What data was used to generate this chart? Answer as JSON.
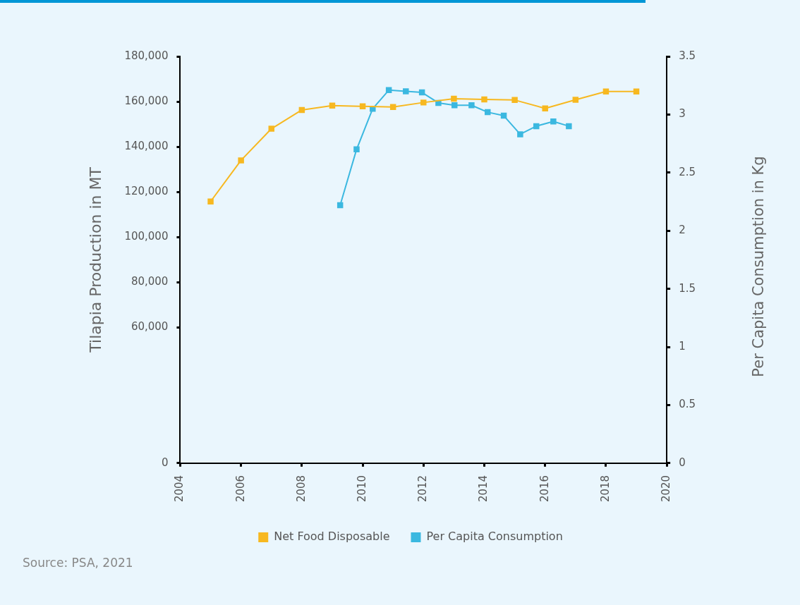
{
  "chart_data": {
    "type": "line",
    "xlabel": null,
    "ylabel": "Tilapia Production in MT",
    "y2label": "Per Capita Consumption in Kg",
    "annotations": [
      "Source: PSA, 2021"
    ],
    "xlim": [
      2004,
      2020
    ],
    "xticks": [
      2004,
      2006,
      2008,
      2010,
      2012,
      2014,
      2016,
      2018,
      2020
    ],
    "ylim": [
      0,
      180000
    ],
    "yticks": [
      0,
      {
        "value": 60000,
        "label": "60,000"
      },
      {
        "value": 80000,
        "label": "80,000"
      },
      {
        "value": 100000,
        "label": "100,000"
      },
      {
        "value": 120000,
        "label": "120,000"
      },
      {
        "value": 140000,
        "label": "140,000"
      },
      {
        "value": 160000,
        "label": "160,000"
      },
      {
        "value": 180000,
        "label": "180,000"
      }
    ],
    "y2lim": [
      0,
      3.5
    ],
    "y2ticks": [
      0,
      0.5,
      1,
      1.5,
      2,
      2.5,
      3,
      3.5
    ],
    "grid": false,
    "legend": "bottom",
    "marker": "square",
    "line_style": "solid",
    "series": [
      {
        "name": "Net Food Disposable",
        "color": "#f7b820",
        "x": [
          2005,
          2006,
          2007,
          2008,
          2009,
          2010,
          2011,
          2012,
          2013,
          2014,
          2015,
          2016,
          2017,
          2018,
          2019
        ],
        "values": [
          115800,
          134000,
          148000,
          156300,
          158200,
          157900,
          157600,
          159600,
          161300,
          161000,
          160700,
          157000,
          160800,
          164500,
          164500
        ]
      },
      {
        "name": "Per Capita Consumption",
        "color": "#3bb8e0",
        "axis": "y2",
        "x": [
          2009.26,
          2009.8,
          2010.33,
          2010.86,
          2011.42,
          2011.95,
          2012.49,
          2013.02,
          2013.58,
          2014.11,
          2014.64,
          2015.18,
          2015.71,
          2016.27,
          2016.78
        ],
        "values": [
          2.22,
          2.7,
          3.05,
          3.21,
          3.2,
          3.19,
          3.1,
          3.08,
          3.08,
          3.02,
          2.99,
          2.83,
          2.9,
          2.94,
          2.9
        ]
      }
    ]
  }
}
